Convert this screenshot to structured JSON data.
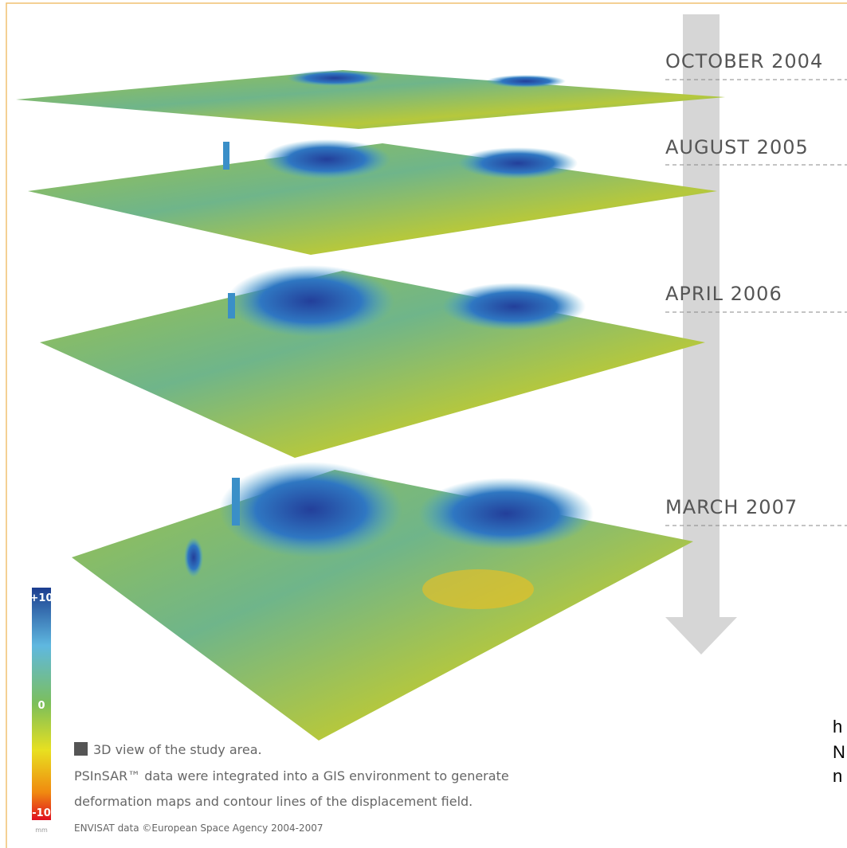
{
  "layers": [
    {
      "label": "OCTOBER 2004"
    },
    {
      "label": "AUGUST 2005"
    },
    {
      "label": "APRIL 2006"
    },
    {
      "label": "MARCH 2007"
    }
  ],
  "legend": {
    "max": "+10",
    "mid": "0",
    "min": "-10",
    "unit": "mm"
  },
  "caption": {
    "title": "3D view of the study area.",
    "lines": [
      "PSInSAR™ data were integrated into a GIS environment to generate",
      "deformation maps and contour lines of the displacement field."
    ],
    "credit": "ENVISAT data ©European Space Agency 2004-2007"
  },
  "side_text": [
    "h",
    "N",
    "n"
  ]
}
